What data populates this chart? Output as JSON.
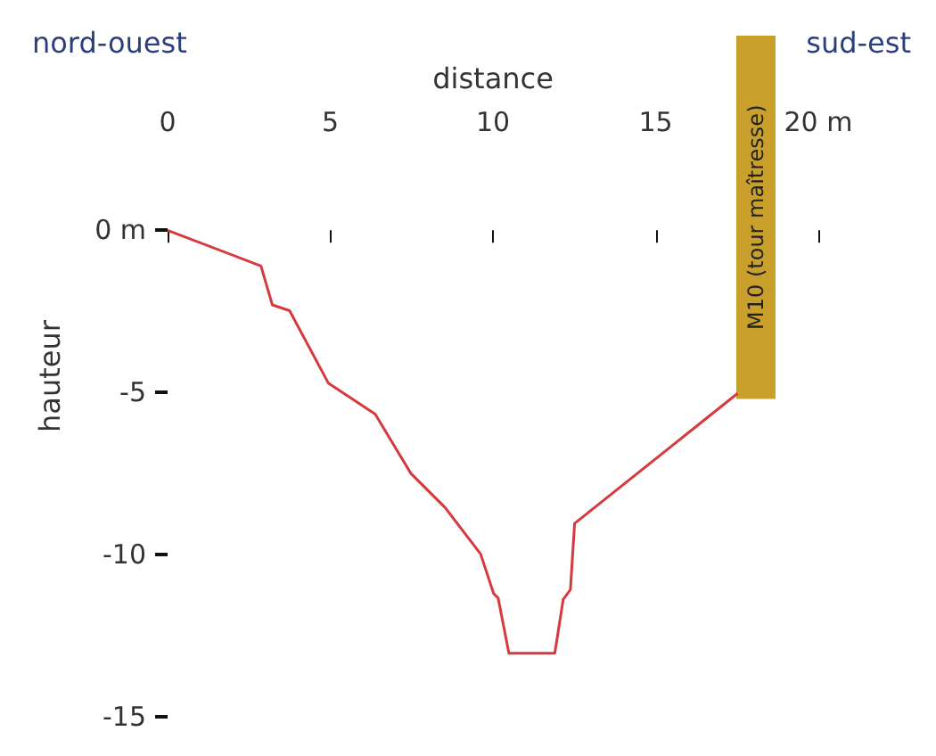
{
  "chart_data": {
    "type": "line",
    "xlabel": "distance",
    "ylabel": "hauteur",
    "annotations": [
      "nord-ouest",
      "sud-est"
    ],
    "xlim": [
      0,
      20
    ],
    "xticks": [
      0,
      5,
      10,
      15,
      {
        "value": 20,
        "label": "20 m"
      }
    ],
    "ylim": [
      -15,
      6
    ],
    "yticks": [
      {
        "value": 0,
        "label": "0 m"
      },
      -5,
      -10,
      -15
    ],
    "grid": false,
    "legend": false,
    "marker": "none",
    "line_style": "solid",
    "series": [
      {
        "color": "#d63a3f",
        "x": [
          0,
          2.87,
          3.22,
          3.75,
          4.94,
          6.38,
          7.48,
          8.53,
          9.62,
          10.02,
          10.16,
          10.49,
          11.9,
          12.16,
          12.38,
          12.51,
          17.52
        ],
        "values": [
          0,
          -1.1,
          -2.3,
          -2.48,
          -4.71,
          -5.67,
          -7.5,
          -8.55,
          -9.98,
          -11.2,
          -11.34,
          -13.04,
          -13.04,
          -11.38,
          -11.08,
          -9.04,
          -5.03
        ]
      },
      {
        "type": "bar",
        "name": "M10 (tour maîtresse)",
        "color": "#c9a02c",
        "x": [
          18.08
        ],
        "base": [
          -5.2
        ],
        "values": [
          11.2
        ]
      }
    ]
  }
}
